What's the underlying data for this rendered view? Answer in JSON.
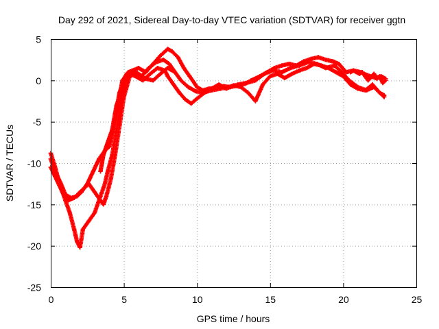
{
  "chart_data": {
    "type": "scatter",
    "title": "Day 292 of 2021, Sidereal Day-to-day VTEC variation (SDTVAR) for receiver ggtn",
    "xlabel": "GPS time / hours",
    "ylabel": "SDTVAR / TECUs",
    "xlim": [
      0,
      25
    ],
    "ylim": [
      -25,
      5
    ],
    "xticks": [
      "0",
      "5",
      "10",
      "15",
      "20",
      "25"
    ],
    "yticks": [
      "-25",
      "-20",
      "-15",
      "-10",
      "-5",
      "0",
      "5"
    ],
    "grid": true,
    "marker": "plus",
    "series": [
      {
        "name": "SDTVAR track 1",
        "color": "#ff0000",
        "x": [
          0.0,
          0.3,
          0.6,
          1.0,
          1.3,
          1.6,
          1.8,
          2.0,
          2.2,
          2.6,
          3.0,
          3.4,
          3.7,
          3.9,
          4.2,
          4.5,
          4.8,
          5.0,
          5.3,
          5.8,
          6.3,
          6.8,
          7.3,
          7.8,
          8.0,
          8.4,
          8.8,
          9.2,
          9.6,
          10.0,
          10.5,
          11.0,
          11.5,
          12.0,
          12.5,
          13.0,
          13.5,
          14.0,
          14.5,
          15.0,
          15.5,
          16.0,
          16.5,
          17.0,
          17.5,
          18.0,
          18.5,
          19.0,
          19.5,
          20.0,
          20.5,
          21.0,
          21.5,
          22.0,
          22.5,
          22.8
        ],
        "y": [
          -8.8,
          -10.5,
          -12.5,
          -14.5,
          -16.0,
          -18.0,
          -19.5,
          -20.2,
          -18.0,
          -17.0,
          -16.0,
          -14.0,
          -12.5,
          -11.0,
          -9.0,
          -6.0,
          -3.0,
          -0.5,
          0.8,
          0.5,
          0.0,
          0.8,
          1.5,
          1.2,
          0.5,
          -0.5,
          -1.5,
          -2.3,
          -2.8,
          -2.2,
          -1.5,
          -1.0,
          -0.5,
          -1.0,
          -0.6,
          -0.8,
          -1.5,
          -2.5,
          -0.5,
          0.5,
          0.8,
          0.3,
          0.8,
          1.2,
          1.5,
          2.0,
          1.8,
          1.5,
          1.0,
          0.5,
          -0.5,
          -1.0,
          -1.2,
          -0.5,
          -1.5,
          -1.8
        ]
      },
      {
        "name": "SDTVAR track 2",
        "color": "#ff0000",
        "x": [
          0.0,
          0.3,
          0.7,
          1.0,
          1.4,
          1.8,
          2.1,
          2.5,
          2.9,
          3.3,
          3.7,
          4.0,
          4.3,
          4.6,
          4.9,
          5.2,
          5.6,
          6.0,
          6.5,
          7.0,
          7.5,
          8.0,
          8.3,
          8.7,
          9.1,
          9.5,
          10.0,
          10.4,
          10.8,
          11.3,
          11.8,
          12.3,
          12.8,
          13.3,
          13.7,
          14.3,
          14.8,
          15.3,
          15.8,
          16.3,
          16.8,
          17.3,
          17.8,
          18.3,
          18.8,
          19.3,
          19.7,
          20.2,
          20.7,
          21.2,
          21.7,
          22.2,
          22.6,
          22.9
        ],
        "y": [
          -9.5,
          -11.0,
          -12.5,
          -13.8,
          -14.2,
          -14.0,
          -13.5,
          -12.5,
          -11.0,
          -9.5,
          -8.5,
          -8.0,
          -6.0,
          -3.5,
          -1.0,
          0.5,
          1.2,
          1.5,
          1.0,
          2.0,
          3.0,
          3.8,
          3.5,
          2.8,
          1.5,
          0.5,
          -0.8,
          -1.2,
          -1.0,
          -0.9,
          -0.7,
          -0.8,
          -0.6,
          -0.4,
          0.0,
          0.5,
          1.0,
          1.5,
          1.8,
          2.0,
          1.8,
          2.3,
          2.6,
          2.8,
          2.5,
          2.3,
          2.0,
          1.0,
          1.2,
          1.0,
          0.6,
          0.3,
          0.5,
          0.2
        ]
      },
      {
        "name": "SDTVAR track 3",
        "color": "#ff0000",
        "x": [
          0.0,
          0.4,
          0.8,
          1.2,
          1.6,
          2.0,
          2.3,
          2.6,
          3.0,
          3.4,
          3.6,
          3.8,
          4.1,
          4.4,
          4.7,
          5.0,
          5.4,
          5.8,
          6.2,
          6.7,
          7.2,
          7.7,
          8.1,
          8.5,
          8.9,
          9.4,
          9.9,
          10.4,
          11.0,
          11.6,
          12.2,
          12.8,
          13.4,
          14.0,
          14.6,
          15.2,
          15.8,
          16.4,
          17.0,
          17.6,
          18.2,
          18.8,
          19.4,
          19.9,
          20.4,
          21.0,
          21.6,
          22.1,
          22.5,
          22.8
        ],
        "y": [
          -10.5,
          -12.0,
          -13.5,
          -14.5,
          -14.2,
          -13.5,
          -13.0,
          -12.5,
          -13.5,
          -14.5,
          -15.0,
          -14.0,
          -12.0,
          -9.0,
          -5.5,
          -2.0,
          0.5,
          1.0,
          0.5,
          1.5,
          2.2,
          2.5,
          2.0,
          1.0,
          0.0,
          -0.8,
          -1.3,
          -1.5,
          -1.2,
          -1.0,
          -0.8,
          -0.5,
          -0.3,
          0.0,
          0.8,
          1.2,
          1.0,
          1.5,
          1.8,
          2.2,
          2.0,
          1.5,
          1.8,
          1.0,
          0.0,
          -0.8,
          -1.2,
          -0.8,
          -1.5,
          -2.0
        ]
      },
      {
        "name": "SDTVAR track 4",
        "color": "#ff0000",
        "x": [
          3.4,
          3.5,
          3.6,
          3.7,
          3.8,
          3.9,
          4.0,
          4.1,
          4.2,
          4.3,
          4.4,
          4.5,
          4.6,
          4.7,
          4.8,
          4.9,
          5.0,
          5.1,
          5.2,
          5.3,
          5.6,
          6.0,
          6.5,
          7.0,
          7.5,
          8.0,
          8.5
        ],
        "y": [
          -11.0,
          -10.0,
          -9.0,
          -8.5,
          -8.0,
          -7.5,
          -7.0,
          -6.5,
          -6.0,
          -5.0,
          -4.0,
          -3.0,
          -2.5,
          -1.5,
          -1.0,
          0.0,
          0.2,
          0.5,
          0.8,
          1.0,
          1.2,
          0.8,
          0.2,
          0.0,
          0.8,
          1.5,
          1.0
        ]
      },
      {
        "name": "SDTVAR track 5",
        "color": "#ff0000",
        "x": [
          20.5,
          20.7,
          20.9,
          21.1,
          21.3,
          21.5,
          21.7,
          21.9,
          22.1,
          22.3,
          22.5,
          22.7,
          22.9
        ],
        "y": [
          1.0,
          1.2,
          1.0,
          0.8,
          1.0,
          0.5,
          0.0,
          0.4,
          0.8,
          0.2,
          0.5,
          -0.3,
          0.0
        ]
      }
    ]
  }
}
